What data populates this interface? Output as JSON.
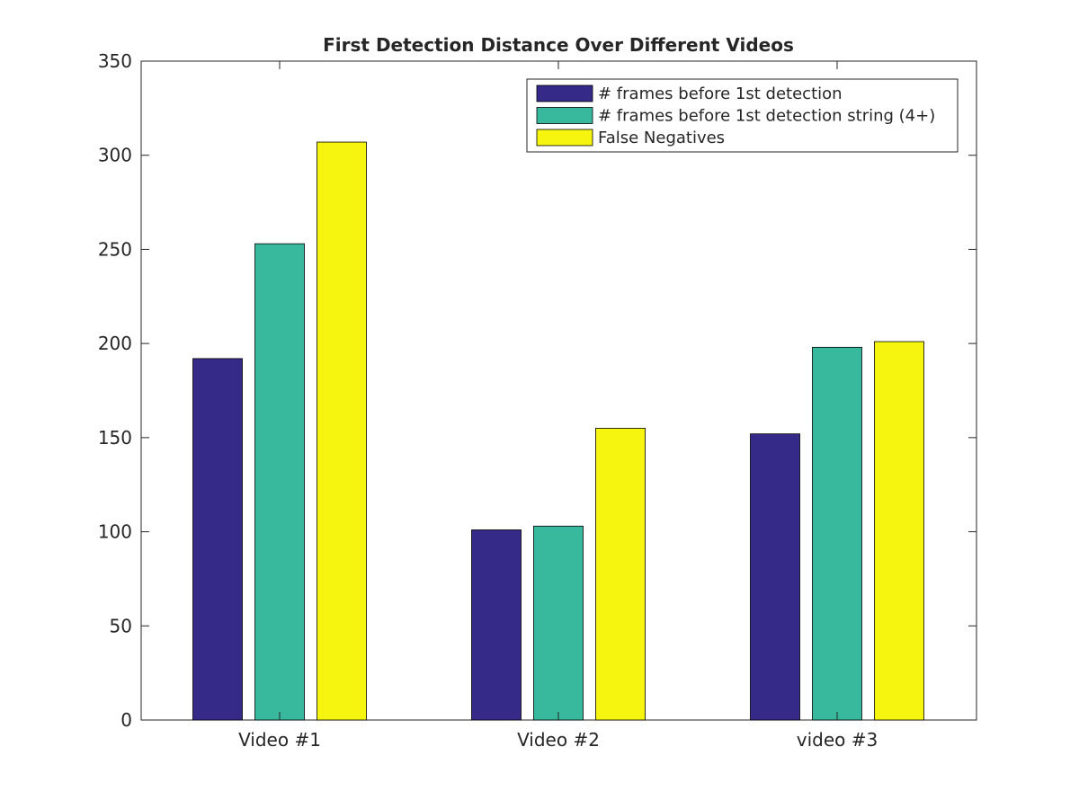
{
  "chart_data": {
    "type": "bar",
    "title": "First Detection Distance Over Different Videos",
    "xlabel": "",
    "ylabel": "",
    "categories": [
      "Video #1",
      "Video #2",
      "video #3"
    ],
    "series": [
      {
        "name": "# frames before 1st detection",
        "color": "#352a87",
        "values": [
          192,
          101,
          152
        ]
      },
      {
        "name": "# frames before 1st detection string (4+)",
        "color": "#38b99e",
        "values": [
          253,
          103,
          198
        ]
      },
      {
        "name": "False Negatives",
        "color": "#f5f50f",
        "values": [
          307,
          155,
          201
        ]
      }
    ],
    "ylim": [
      0,
      350
    ],
    "yticks": [
      "0",
      "50",
      "100",
      "150",
      "200",
      "250",
      "300",
      "350"
    ],
    "grid": false,
    "legend_position": "top-right"
  }
}
